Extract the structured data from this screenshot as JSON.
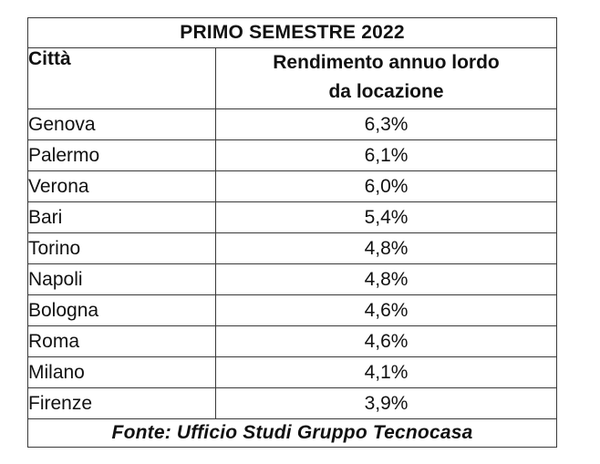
{
  "table": {
    "title": "PRIMO SEMESTRE 2022",
    "headers": {
      "city": "Città",
      "yield_line1": "Rendimento annuo lordo",
      "yield_line2": "da locazione"
    },
    "rows": [
      {
        "city": "Genova",
        "yield": "6,3%"
      },
      {
        "city": "Palermo",
        "yield": "6,1%"
      },
      {
        "city": "Verona",
        "yield": "6,0%"
      },
      {
        "city": "Bari",
        "yield": "5,4%"
      },
      {
        "city": "Torino",
        "yield": "4,8%"
      },
      {
        "city": "Napoli",
        "yield": "4,8%"
      },
      {
        "city": "Bologna",
        "yield": "4,6%"
      },
      {
        "city": "Roma",
        "yield": "4,6%"
      },
      {
        "city": "Milano",
        "yield": "4,1%"
      },
      {
        "city": "Firenze",
        "yield": "3,9%"
      }
    ],
    "source": "Fonte: Ufficio Studi Gruppo Tecnocasa"
  }
}
